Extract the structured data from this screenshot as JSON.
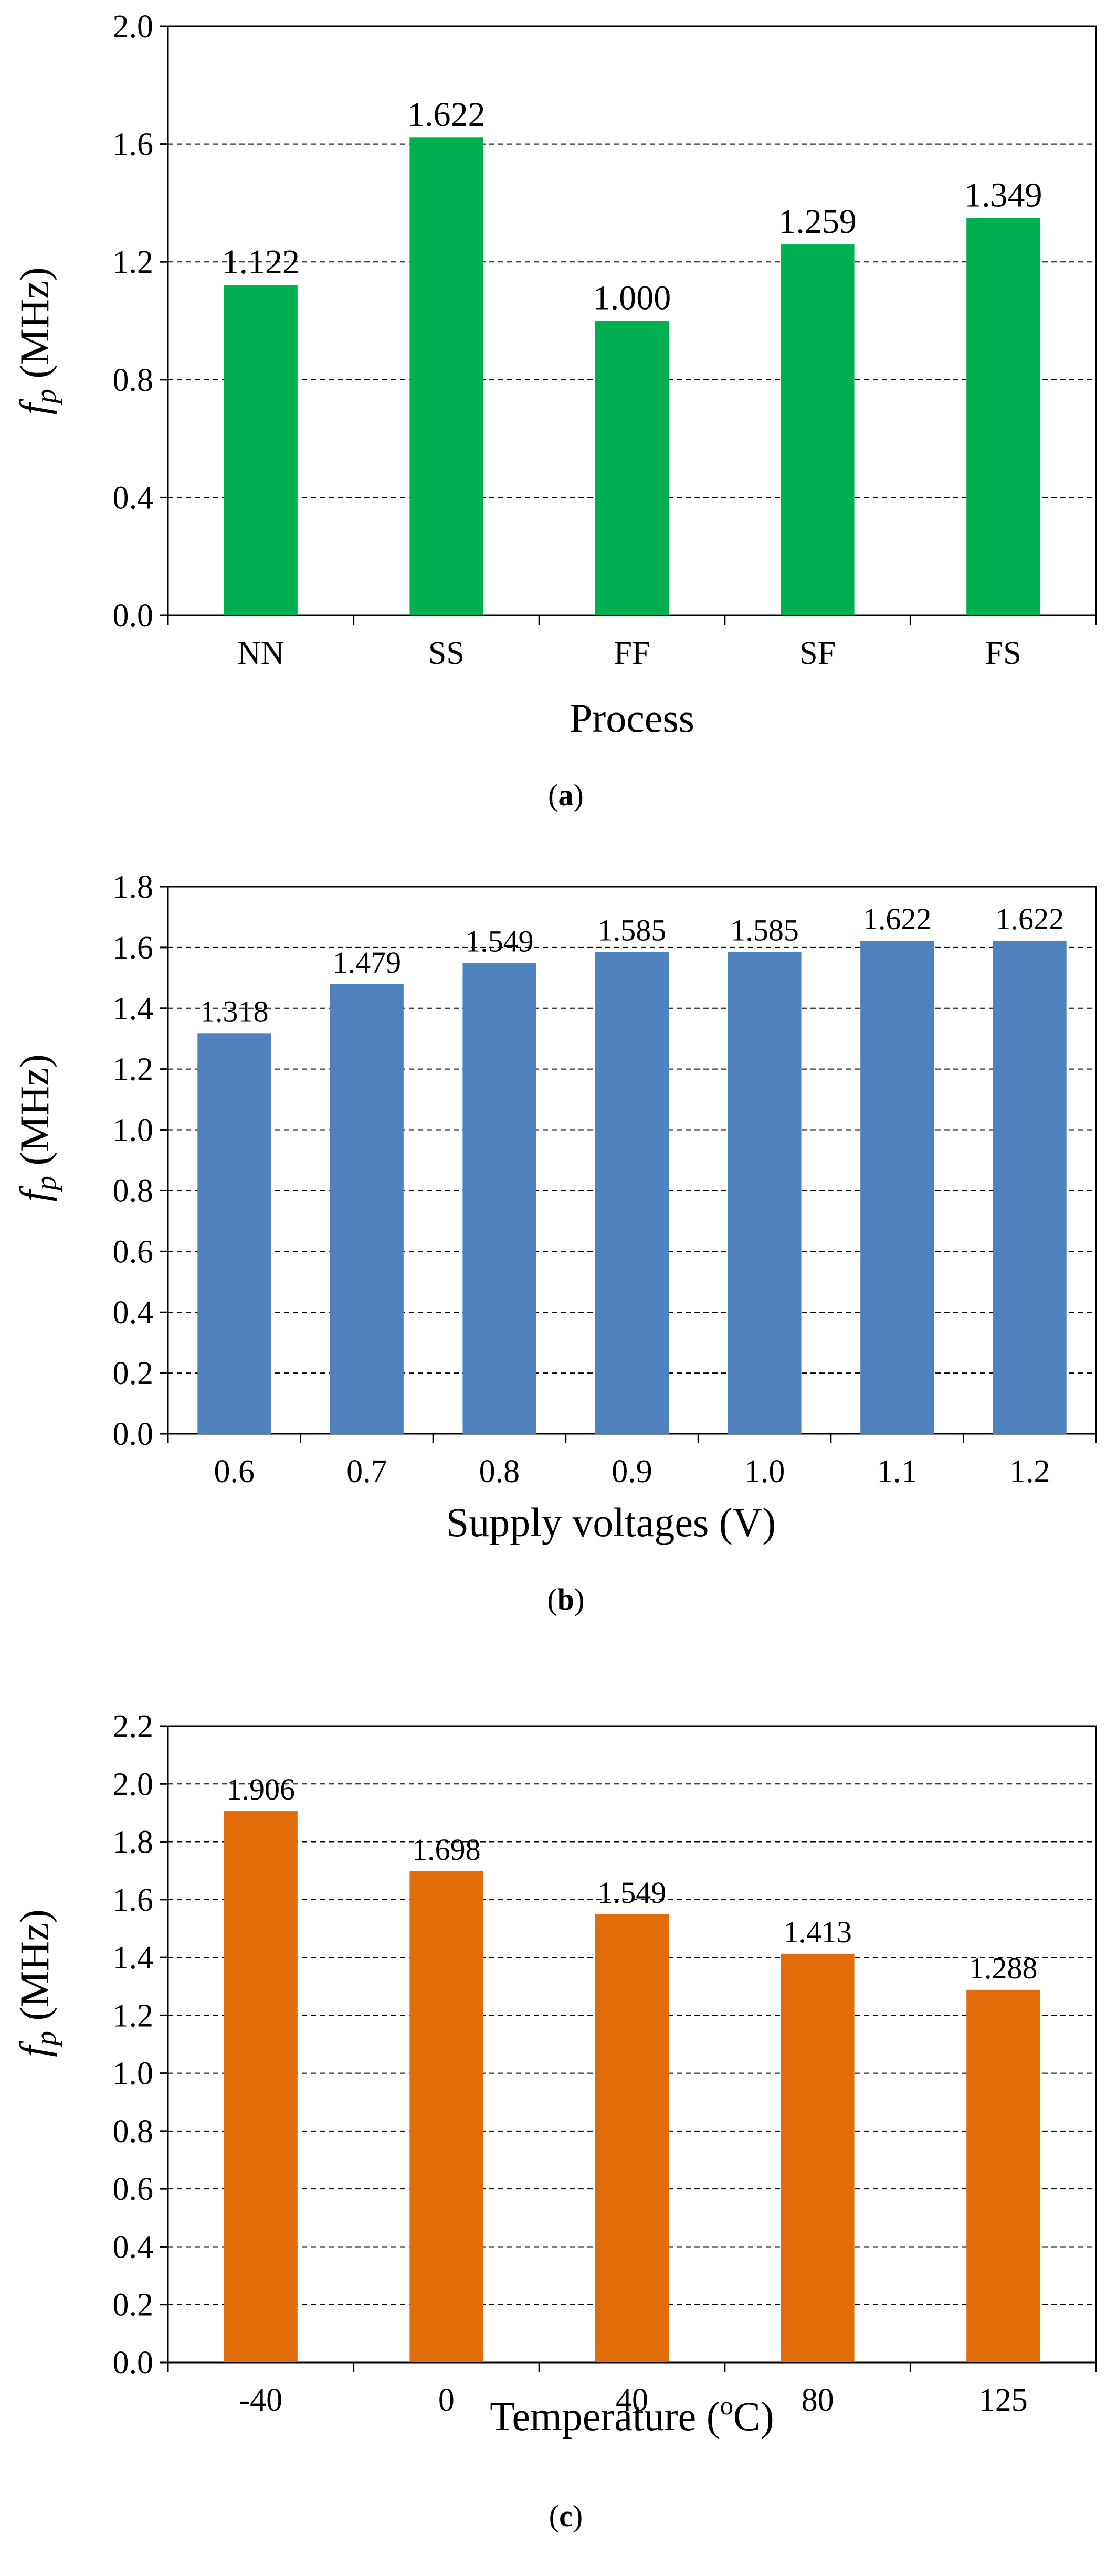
{
  "chart_data": [
    {
      "type": "bar",
      "panel_label": "a",
      "xlabel": "Process",
      "ylabel_symbol": "f",
      "ylabel_subscript": "p",
      "ylabel_unit": " (MHz)",
      "categories": [
        "NN",
        "SS",
        "FF",
        "SF",
        "FS"
      ],
      "values": [
        1.122,
        1.622,
        1.0,
        1.259,
        1.349
      ],
      "value_labels": [
        "1.122",
        "1.622",
        "1.000",
        "1.259",
        "1.349"
      ],
      "ylim": [
        0,
        2.0
      ],
      "yticks": [
        "0.0",
        "0.4",
        "0.8",
        "1.2",
        "1.6",
        "2.0"
      ],
      "bar_color": "#00b050",
      "grid": "horizontal dashed"
    },
    {
      "type": "bar",
      "panel_label": "b",
      "xlabel": "Supply voltages (V)",
      "ylabel_symbol": "f",
      "ylabel_subscript": "p",
      "ylabel_unit": " (MHz)",
      "categories": [
        "0.6",
        "0.7",
        "0.8",
        "0.9",
        "1.0",
        "1.1",
        "1.2"
      ],
      "values": [
        1.318,
        1.479,
        1.549,
        1.585,
        1.585,
        1.622,
        1.622
      ],
      "value_labels": [
        "1.318",
        "1.479",
        "1.549",
        "1.585",
        "1.585",
        "1.622",
        "1.622"
      ],
      "ylim": [
        0,
        1.8
      ],
      "yticks": [
        "0.0",
        "0.2",
        "0.4",
        "0.6",
        "0.8",
        "1.0",
        "1.2",
        "1.4",
        "1.6",
        "1.8"
      ],
      "bar_color": "#4f81bd",
      "grid": "horizontal dashed"
    },
    {
      "type": "bar",
      "panel_label": "c",
      "xlabel_main": "Temperature (",
      "xlabel_sup": "o",
      "xlabel_tail": "C)",
      "ylabel_symbol": "f",
      "ylabel_subscript": "p",
      "ylabel_unit": " (MHz)",
      "categories": [
        "-40",
        "0",
        "40",
        "80",
        "125"
      ],
      "values": [
        1.906,
        1.698,
        1.549,
        1.413,
        1.288
      ],
      "value_labels": [
        "1.906",
        "1.698",
        "1.549",
        "1.413",
        "1.288"
      ],
      "ylim": [
        0,
        2.2
      ],
      "yticks": [
        "0.0",
        "0.2",
        "0.4",
        "0.6",
        "0.8",
        "1.0",
        "1.2",
        "1.4",
        "1.6",
        "1.8",
        "2.0",
        "2.2"
      ],
      "bar_color": "#e26b0a",
      "grid": "horizontal dashed"
    }
  ]
}
